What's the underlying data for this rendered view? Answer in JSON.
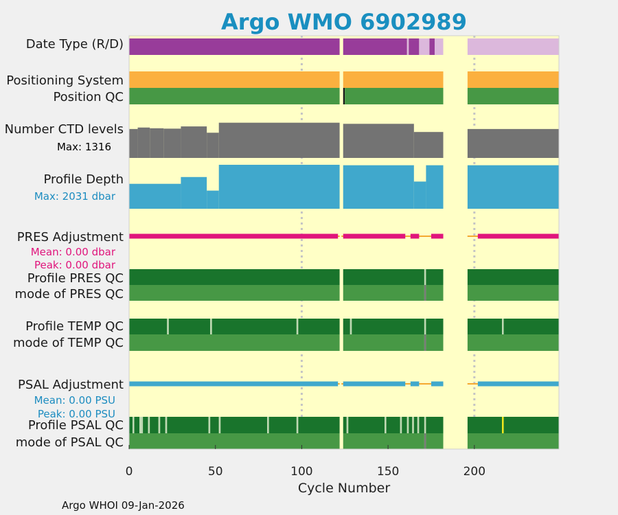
{
  "chart_data": {
    "type": "status-timeline",
    "title": "Argo WMO 6902989",
    "xlabel": "Cycle Number",
    "xlim": [
      0,
      249
    ],
    "xticks": [
      0,
      50,
      100,
      150,
      200
    ],
    "gridlines_x": [
      100,
      200
    ],
    "footer": "Argo WHOI 09-Jan-2026",
    "no_data_gaps": [
      [
        122,
        123
      ],
      [
        182,
        196
      ]
    ],
    "rows": [
      {
        "id": "date-type",
        "label": "Date Type (R/D)",
        "segments": [
          {
            "from": 0,
            "to": 122,
            "color": "#983c9a"
          },
          {
            "from": 124,
            "to": 161,
            "color": "#983c9a"
          },
          {
            "from": 161,
            "to": 162,
            "color": "#dcb8dc"
          },
          {
            "from": 162,
            "to": 168,
            "color": "#983c9a"
          },
          {
            "from": 168,
            "to": 174,
            "color": "#dcb8dc"
          },
          {
            "from": 174,
            "to": 177,
            "color": "#983c9a"
          },
          {
            "from": 177,
            "to": 182,
            "color": "#dcb8dc"
          },
          {
            "from": 196,
            "to": 249,
            "color": "#dcb8dc"
          }
        ]
      },
      {
        "id": "positioning-system",
        "label": "Positioning System",
        "segments": [
          {
            "from": 0,
            "to": 122,
            "color": "#fbb03f"
          },
          {
            "from": 124,
            "to": 182,
            "color": "#fbb03f"
          },
          {
            "from": 196,
            "to": 249,
            "color": "#fbb03f"
          }
        ]
      },
      {
        "id": "position-qc",
        "label": "Position QC",
        "segments": [
          {
            "from": 0,
            "to": 122,
            "color": "#479845"
          },
          {
            "from": 124,
            "to": 125,
            "color": "#1a1a1a"
          },
          {
            "from": 125,
            "to": 182,
            "color": "#479845"
          },
          {
            "from": 196,
            "to": 249,
            "color": "#479845"
          }
        ]
      },
      {
        "id": "ctd-levels",
        "label": "Number CTD levels",
        "stat_label": "Max: 1316",
        "stat_color": "#000000",
        "kind": "bars",
        "bar_color": "#737373",
        "max_value": 1316,
        "profile": [
          {
            "from": 0,
            "to": 5,
            "level": 0.78
          },
          {
            "from": 5,
            "to": 12,
            "level": 0.82
          },
          {
            "from": 12,
            "to": 20,
            "level": 0.8
          },
          {
            "from": 20,
            "to": 30,
            "level": 0.79
          },
          {
            "from": 30,
            "to": 45,
            "level": 0.85
          },
          {
            "from": 45,
            "to": 52,
            "level": 0.68
          },
          {
            "from": 52,
            "to": 122,
            "level": 0.95
          },
          {
            "from": 124,
            "to": 165,
            "level": 0.92
          },
          {
            "from": 165,
            "to": 182,
            "level": 0.7
          },
          {
            "from": 196,
            "to": 249,
            "level": 0.78
          }
        ]
      },
      {
        "id": "profile-depth",
        "label": "Profile Depth",
        "stat_label": "Max: 2031 dbar",
        "stat_color": "#1c8cc0",
        "kind": "bars",
        "bar_color": "#40a8cc",
        "max_value": 2031,
        "profile": [
          {
            "from": 0,
            "to": 30,
            "level": 0.55
          },
          {
            "from": 30,
            "to": 45,
            "level": 0.7
          },
          {
            "from": 45,
            "to": 52,
            "level": 0.4
          },
          {
            "from": 52,
            "to": 122,
            "level": 0.97
          },
          {
            "from": 124,
            "to": 165,
            "level": 0.96
          },
          {
            "from": 165,
            "to": 172,
            "level": 0.6
          },
          {
            "from": 172,
            "to": 182,
            "level": 0.96
          },
          {
            "from": 196,
            "to": 249,
            "level": 0.96
          }
        ]
      },
      {
        "id": "pres-adjustment",
        "label": "PRES Adjustment",
        "stat_label": "Mean: 0.00 dbar",
        "stat_label2": "Peak: 0.00 dbar",
        "stat_color": "#e0157c",
        "kind": "line",
        "line_color": "#e0157c",
        "connector_color": "#f4a830",
        "segments": [
          {
            "from": 0,
            "to": 121
          },
          {
            "from": 124,
            "to": 160
          },
          {
            "from": 163,
            "to": 168
          },
          {
            "from": 175,
            "to": 182
          },
          {
            "from": 202,
            "to": 249
          }
        ]
      },
      {
        "id": "profile-pres-qc",
        "label": "Profile PRES QC",
        "segments": [
          {
            "from": 0,
            "to": 122,
            "color": "#19742c"
          },
          {
            "from": 124,
            "to": 171,
            "color": "#19742c"
          },
          {
            "from": 171,
            "to": 172,
            "color": "#bfd9b4"
          },
          {
            "from": 172,
            "to": 182,
            "color": "#19742c"
          },
          {
            "from": 196,
            "to": 249,
            "color": "#19742c"
          }
        ]
      },
      {
        "id": "mode-pres-qc",
        "label": "mode of PRES QC",
        "segments": [
          {
            "from": 0,
            "to": 122,
            "color": "#479845"
          },
          {
            "from": 124,
            "to": 171,
            "color": "#479845"
          },
          {
            "from": 171,
            "to": 172,
            "color": "#7a7a7a"
          },
          {
            "from": 172,
            "to": 182,
            "color": "#479845"
          },
          {
            "from": 196,
            "to": 249,
            "color": "#479845"
          }
        ]
      },
      {
        "id": "profile-temp-qc",
        "label": "Profile TEMP QC",
        "segments": [
          {
            "from": 0,
            "to": 22,
            "color": "#19742c"
          },
          {
            "from": 22,
            "to": 23,
            "color": "#bfd9b4"
          },
          {
            "from": 23,
            "to": 47,
            "color": "#19742c"
          },
          {
            "from": 47,
            "to": 48,
            "color": "#bfd9b4"
          },
          {
            "from": 48,
            "to": 97,
            "color": "#19742c"
          },
          {
            "from": 97,
            "to": 98,
            "color": "#bfd9b4"
          },
          {
            "from": 98,
            "to": 122,
            "color": "#19742c"
          },
          {
            "from": 124,
            "to": 128,
            "color": "#19742c"
          },
          {
            "from": 128,
            "to": 129,
            "color": "#bfd9b4"
          },
          {
            "from": 129,
            "to": 171,
            "color": "#19742c"
          },
          {
            "from": 171,
            "to": 172,
            "color": "#bfd9b4"
          },
          {
            "from": 172,
            "to": 182,
            "color": "#19742c"
          },
          {
            "from": 196,
            "to": 216,
            "color": "#19742c"
          },
          {
            "from": 216,
            "to": 217,
            "color": "#bfd9b4"
          },
          {
            "from": 217,
            "to": 249,
            "color": "#19742c"
          }
        ]
      },
      {
        "id": "mode-temp-qc",
        "label": "mode of TEMP QC",
        "segments": [
          {
            "from": 0,
            "to": 122,
            "color": "#479845"
          },
          {
            "from": 124,
            "to": 171,
            "color": "#479845"
          },
          {
            "from": 171,
            "to": 172,
            "color": "#7a7a7a"
          },
          {
            "from": 172,
            "to": 182,
            "color": "#479845"
          },
          {
            "from": 196,
            "to": 249,
            "color": "#479845"
          }
        ]
      },
      {
        "id": "psal-adjustment",
        "label": "PSAL Adjustment",
        "stat_label": "Mean: 0.00 PSU",
        "stat_label2": "Peak: 0.00 PSU",
        "stat_color": "#1c8cc0",
        "kind": "line",
        "line_color": "#40a8cc",
        "connector_color": "#f4a830",
        "segments": [
          {
            "from": 0,
            "to": 121
          },
          {
            "from": 124,
            "to": 160
          },
          {
            "from": 163,
            "to": 168
          },
          {
            "from": 175,
            "to": 182
          },
          {
            "from": 202,
            "to": 249
          }
        ]
      },
      {
        "id": "profile-psal-qc",
        "label": "Profile PSAL QC",
        "segments": [
          {
            "from": 0,
            "to": 2,
            "color": "#19742c"
          },
          {
            "from": 2,
            "to": 3,
            "color": "#bfd9b4"
          },
          {
            "from": 3,
            "to": 6,
            "color": "#19742c"
          },
          {
            "from": 6,
            "to": 8,
            "color": "#bfd9b4"
          },
          {
            "from": 8,
            "to": 11,
            "color": "#19742c"
          },
          {
            "from": 11,
            "to": 12,
            "color": "#bfd9b4"
          },
          {
            "from": 12,
            "to": 17,
            "color": "#19742c"
          },
          {
            "from": 17,
            "to": 18,
            "color": "#bfd9b4"
          },
          {
            "from": 18,
            "to": 21,
            "color": "#19742c"
          },
          {
            "from": 21,
            "to": 22,
            "color": "#bfd9b4"
          },
          {
            "from": 22,
            "to": 46,
            "color": "#19742c"
          },
          {
            "from": 46,
            "to": 47,
            "color": "#bfd9b4"
          },
          {
            "from": 47,
            "to": 52,
            "color": "#19742c"
          },
          {
            "from": 52,
            "to": 53,
            "color": "#bfd9b4"
          },
          {
            "from": 53,
            "to": 80,
            "color": "#19742c"
          },
          {
            "from": 80,
            "to": 81,
            "color": "#bfd9b4"
          },
          {
            "from": 81,
            "to": 97,
            "color": "#19742c"
          },
          {
            "from": 97,
            "to": 98,
            "color": "#bfd9b4"
          },
          {
            "from": 98,
            "to": 122,
            "color": "#19742c"
          },
          {
            "from": 124,
            "to": 126,
            "color": "#19742c"
          },
          {
            "from": 126,
            "to": 127,
            "color": "#bfd9b4"
          },
          {
            "from": 127,
            "to": 148,
            "color": "#19742c"
          },
          {
            "from": 148,
            "to": 149,
            "color": "#bfd9b4"
          },
          {
            "from": 149,
            "to": 157,
            "color": "#19742c"
          },
          {
            "from": 157,
            "to": 158,
            "color": "#bfd9b4"
          },
          {
            "from": 158,
            "to": 161,
            "color": "#19742c"
          },
          {
            "from": 161,
            "to": 162,
            "color": "#bfd9b4"
          },
          {
            "from": 162,
            "to": 164,
            "color": "#19742c"
          },
          {
            "from": 164,
            "to": 165,
            "color": "#bfd9b4"
          },
          {
            "from": 165,
            "to": 167,
            "color": "#19742c"
          },
          {
            "from": 167,
            "to": 168,
            "color": "#bfd9b4"
          },
          {
            "from": 168,
            "to": 171,
            "color": "#19742c"
          },
          {
            "from": 171,
            "to": 172,
            "color": "#bfd9b4"
          },
          {
            "from": 172,
            "to": 182,
            "color": "#19742c"
          },
          {
            "from": 196,
            "to": 216,
            "color": "#19742c"
          },
          {
            "from": 216,
            "to": 217,
            "color": "#f0e81a"
          },
          {
            "from": 217,
            "to": 249,
            "color": "#19742c"
          }
        ]
      },
      {
        "id": "mode-psal-qc",
        "label": "mode of PSAL QC",
        "segments": [
          {
            "from": 0,
            "to": 122,
            "color": "#479845"
          },
          {
            "from": 124,
            "to": 171,
            "color": "#479845"
          },
          {
            "from": 171,
            "to": 172,
            "color": "#7a7a7a"
          },
          {
            "from": 172,
            "to": 182,
            "color": "#479845"
          },
          {
            "from": 196,
            "to": 249,
            "color": "#479845"
          }
        ]
      }
    ]
  }
}
